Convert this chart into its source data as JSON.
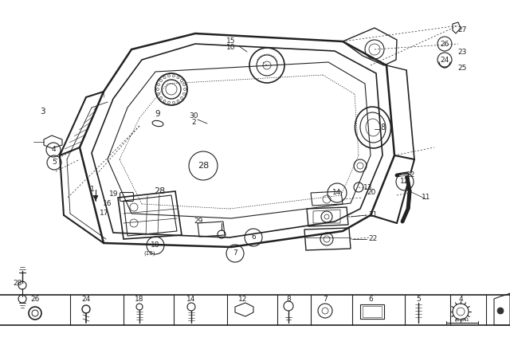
{
  "bg_color": "#f0f0f0",
  "lc": "#1a1a1a",
  "fig_w": 6.4,
  "fig_h": 4.48,
  "dpi": 100
}
